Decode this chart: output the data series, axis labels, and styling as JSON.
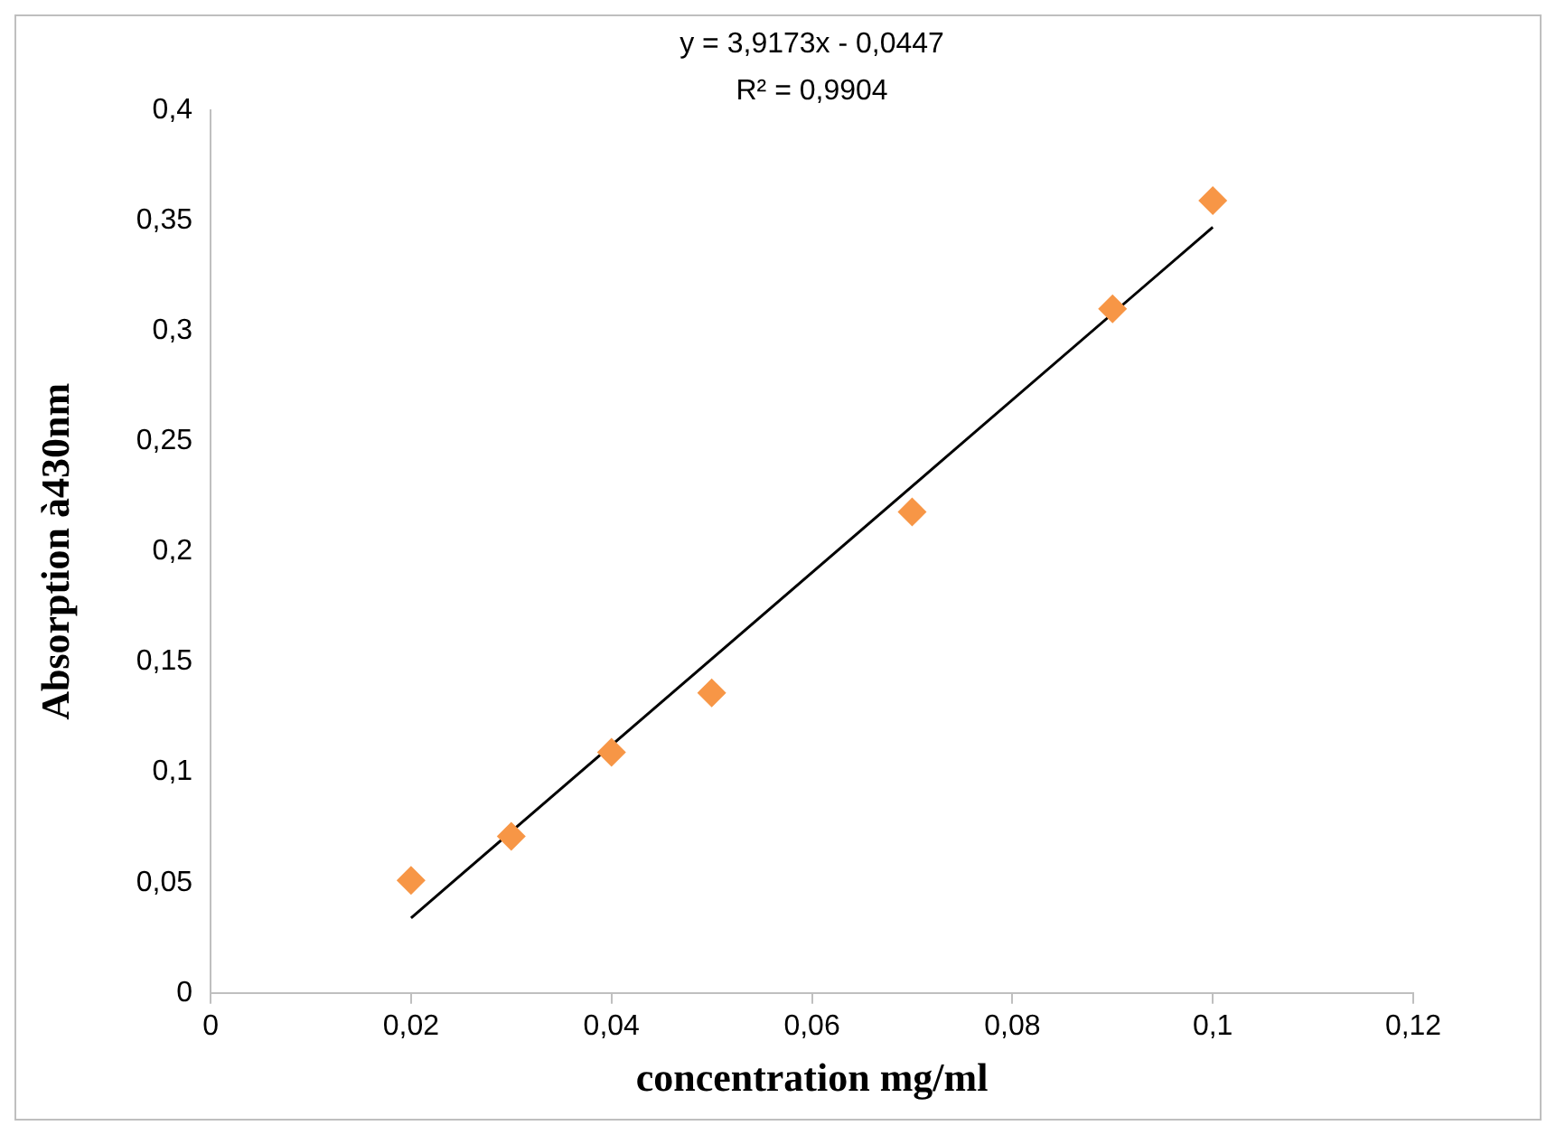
{
  "chart_data": {
    "type": "scatter",
    "xlabel": "concentration mg/ml",
    "ylabel": "Absorption à430nm",
    "annotations": [
      "y = 3,9173x - 0,0447",
      "R² = 0,9904"
    ],
    "series": [
      {
        "type": "scatter",
        "color": "#f79646",
        "marker": "diamond",
        "x": [
          0.02,
          0.03,
          0.04,
          0.05,
          0.07,
          0.09,
          0.1
        ],
        "values": [
          0.051,
          0.071,
          0.109,
          0.136,
          0.218,
          0.31,
          0.359
        ]
      },
      {
        "type": "line",
        "color": "#000000",
        "marker": "none",
        "line_style": "solid",
        "x": [
          0.02,
          0.1
        ],
        "values": [
          0.034,
          0.347
        ]
      }
    ],
    "xlim": [
      0,
      0.12
    ],
    "xticks": [
      {
        "value": 0,
        "label": "0"
      },
      {
        "value": 0.02,
        "label": "0,02"
      },
      {
        "value": 0.04,
        "label": "0,04"
      },
      {
        "value": 0.06,
        "label": "0,06"
      },
      {
        "value": 0.08,
        "label": "0,08"
      },
      {
        "value": 0.1,
        "label": "0,1"
      },
      {
        "value": 0.12,
        "label": "0,12"
      }
    ],
    "ylim": [
      0,
      0.4
    ],
    "yticks": [
      {
        "value": 0,
        "label": "0"
      },
      {
        "value": 0.05,
        "label": "0,05"
      },
      {
        "value": 0.1,
        "label": "0,1"
      },
      {
        "value": 0.15,
        "label": "0,15"
      },
      {
        "value": 0.2,
        "label": "0,2"
      },
      {
        "value": 0.25,
        "label": "0,25"
      },
      {
        "value": 0.3,
        "label": "0,3"
      },
      {
        "value": 0.35,
        "label": "0,35"
      },
      {
        "value": 0.4,
        "label": "0,4"
      }
    ],
    "grid": false
  }
}
